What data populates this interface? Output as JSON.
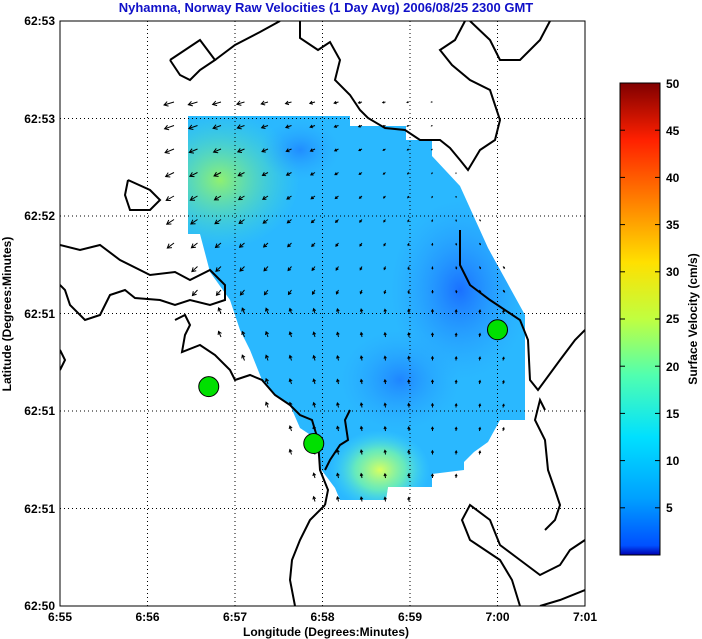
{
  "chart_data": {
    "type": "heatmap",
    "title": "Nyhamna, Norway Raw Velocities (1 Day Avg) 2006/08/25 2300 GMT",
    "xlabel": "Longitude (Degrees:Minutes)",
    "ylabel": "Latitude (Degrees:Minutes)",
    "x_ticks": [
      "6:55",
      "6:56",
      "6:57",
      "6:58",
      "6:59",
      "7:00",
      "7:01"
    ],
    "y_ticks": [
      "62:53",
      "62:53",
      "62:52",
      "62:51",
      "62:51",
      "62:51",
      "62:50"
    ],
    "grid": true,
    "colorbar": {
      "label": "Surface Velocity (cm/s)",
      "min": 0,
      "max": 50,
      "ticks": [
        "50",
        "45",
        "40",
        "35",
        "30",
        "25",
        "20",
        "15",
        "10",
        "5"
      ],
      "colormap": "jet"
    },
    "markers": [
      {
        "name": "site",
        "lon_min": 56.7,
        "lat_min": 51.35,
        "color": "#00e000"
      },
      {
        "name": "site",
        "lon_min": 57.9,
        "lat_min": 51.0,
        "color": "#00e000"
      },
      {
        "name": "site",
        "lon_min": 60.0,
        "lat_min": 51.7,
        "color": "#00e000"
      }
    ]
  }
}
